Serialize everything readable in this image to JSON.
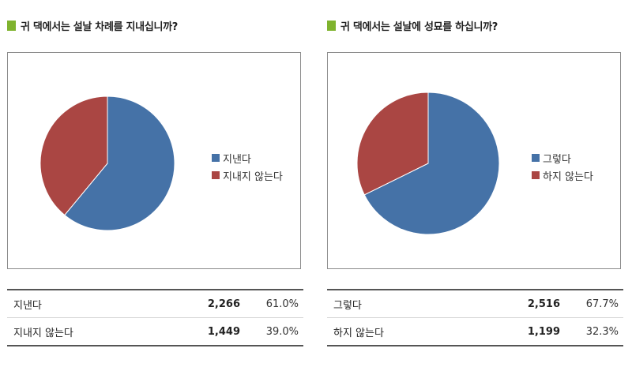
{
  "chart_data": [
    {
      "type": "pie",
      "title": "귀 댁에서는 설날 차례를 지내십니까?",
      "categories": [
        "지낸다",
        "지내지 않는다"
      ],
      "values": [
        61.0,
        39.0
      ],
      "counts": [
        "2,266",
        "1,449"
      ],
      "percent_labels": [
        "61.0%",
        "39.0%"
      ],
      "colors": [
        "#4572a7",
        "#aa4643"
      ],
      "legend_position": "right"
    },
    {
      "type": "pie",
      "title": "귀 댁에서는 설날에 성묘를 하십니까?",
      "categories": [
        "그렇다",
        "하지 않는다"
      ],
      "values": [
        67.7,
        32.3
      ],
      "counts": [
        "2,516",
        "1,199"
      ],
      "percent_labels": [
        "67.7%",
        "32.3%"
      ],
      "colors": [
        "#4572a7",
        "#aa4643"
      ],
      "legend_position": "right"
    }
  ]
}
